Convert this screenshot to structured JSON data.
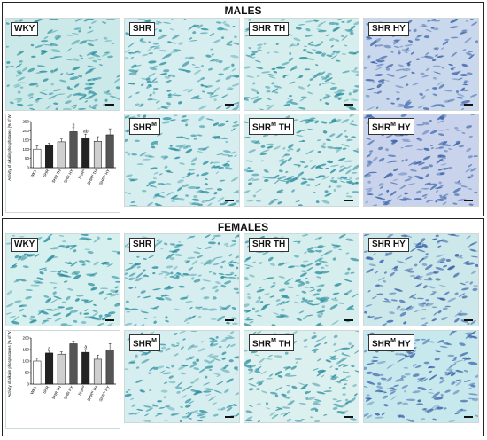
{
  "sections": [
    {
      "title": "MALES",
      "panels": [
        {
          "id": "m-wky",
          "label": "WKY",
          "sup": "",
          "suffix": ""
        },
        {
          "id": "m-shr",
          "label": "SHR",
          "sup": "",
          "suffix": ""
        },
        {
          "id": "m-shr-th",
          "label": "SHR",
          "sup": "",
          "suffix": " TH"
        },
        {
          "id": "m-shr-hy",
          "label": "SHR",
          "sup": "",
          "suffix": " HY"
        },
        {
          "id": "m-shrm",
          "label": "SHR",
          "sup": "M",
          "suffix": ""
        },
        {
          "id": "m-shrm-th",
          "label": "SHR",
          "sup": "M",
          "suffix": " TH"
        },
        {
          "id": "m-shrm-hy",
          "label": "SHR",
          "sup": "M",
          "suffix": " HY"
        }
      ],
      "chart": {
        "ylabel": "Activity of alkalin phosphatases (% of WKY)",
        "yticks": [
          "0",
          "50",
          "100",
          "150",
          "200",
          "250"
        ]
      }
    },
    {
      "title": "FEMALES",
      "panels": [
        {
          "id": "f-wky",
          "label": "WKY",
          "sup": "",
          "suffix": ""
        },
        {
          "id": "f-shr",
          "label": "SHR",
          "sup": "",
          "suffix": ""
        },
        {
          "id": "f-shr-th",
          "label": "SHR",
          "sup": "",
          "suffix": " TH"
        },
        {
          "id": "f-shr-hy",
          "label": "SHR",
          "sup": "",
          "suffix": " HY"
        },
        {
          "id": "f-shrm",
          "label": "SHR",
          "sup": "M",
          "suffix": ""
        },
        {
          "id": "f-shrm-th",
          "label": "SHR",
          "sup": "M",
          "suffix": " TH"
        },
        {
          "id": "f-shrm-hy",
          "label": "SHR",
          "sup": "M",
          "suffix": " HY"
        }
      ],
      "chart": {
        "ylabel": "Activity of alkalin phosphatases (% of WKY)",
        "yticks": [
          "0",
          "50",
          "100",
          "150",
          "200"
        ]
      }
    }
  ],
  "chart_data": [
    {
      "type": "bar",
      "categories": [
        "WKY",
        "SHR",
        "SHR TH",
        "SHR HY",
        "SHR^M",
        "SHR^M TH",
        "SHR^M HY"
      ],
      "values": [
        100,
        122,
        140,
        195,
        162,
        143,
        178
      ],
      "errors": [
        18,
        10,
        15,
        22,
        20,
        25,
        33
      ],
      "annotations": [
        "",
        "",
        "",
        "b",
        "ab",
        "",
        ""
      ],
      "colors": [
        "#ffffff",
        "#222222",
        "#cfcfcf",
        "#555555",
        "#222222",
        "#cfcfcf",
        "#555555"
      ],
      "ylabel": "Activity of alkalin phosphatases (% of WKY)",
      "ylim": [
        0,
        250
      ]
    },
    {
      "type": "bar",
      "categories": [
        "WKY",
        "SHR",
        "SHR TH",
        "SHR HY",
        "SHR^M",
        "SHR^M TH",
        "SHR^M HY"
      ],
      "values": [
        100,
        135,
        130,
        175,
        138,
        108,
        148
      ],
      "errors": [
        12,
        8,
        10,
        12,
        12,
        18,
        28
      ],
      "annotations": [
        "",
        "a",
        "",
        "",
        "a",
        "",
        ""
      ],
      "colors": [
        "#ffffff",
        "#222222",
        "#cfcfcf",
        "#555555",
        "#222222",
        "#cfcfcf",
        "#555555"
      ],
      "ylabel": "Activity of alkalin phosphatases (% of WKY)",
      "ylim": [
        0,
        200
      ]
    }
  ]
}
